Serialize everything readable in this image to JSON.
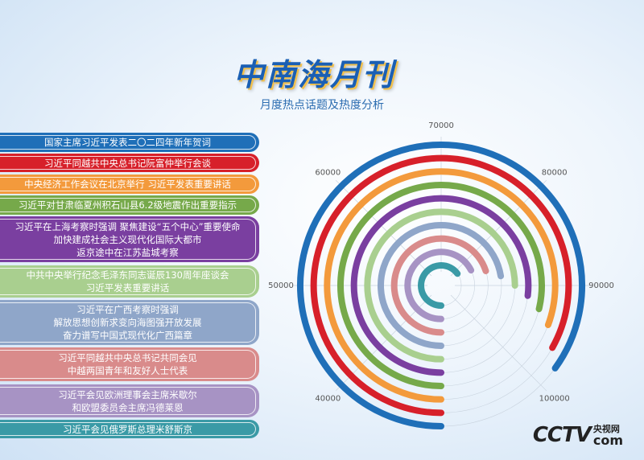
{
  "chart_data": {
    "type": "radial_bar",
    "title": "中南海月刊",
    "subtitle": "月度热点话题及热度分析",
    "categories": [
      "国家主席习近平发表二〇二四年新年贺词",
      "习近平同越共中央总书记阮富仲举行会谈",
      "中央经济工作会议在北京举行 习近平发表重要讲话",
      "习近平对甘肃临夏州积石山县6.2级地震作出重要指示",
      "习近平在上海考察时强调 聚焦建设“五个中心”重要使命\n加快建成社会主义现代化国际大都市\n返京途中在江苏盐城考察",
      "中共中央举行纪念毛泽东同志诞辰130周年座谈会\n习近平发表重要讲话",
      "习近平在广西考察时强调\n解放思想创新求变向海图强开放发展\n奋力谱写中国式现代化广西篇章",
      "习近平同越共中央总书记共同会见\n中越两国青年和友好人士代表",
      "习近平会见欧洲理事会主席米歇尔\n和欧盟委员会主席冯德莱恩",
      "习近平会见俄罗斯总理米舒斯京"
    ],
    "values": [
      98000,
      96500,
      94500,
      93000,
      91500,
      90000,
      88000,
      86000,
      84000,
      82000
    ],
    "colors": [
      "#1f6fb8",
      "#d7202a",
      "#f39a3c",
      "#76a94a",
      "#7a3fa0",
      "#a9cf8f",
      "#8fa6c9",
      "#d98b8b",
      "#a793c4",
      "#3a9aa6"
    ],
    "xlim": [
      30000,
      110000
    ],
    "xticks": [
      40000,
      50000,
      60000,
      70000,
      80000,
      90000,
      100000
    ],
    "grid": true,
    "logo": "CCTV",
    "logo_sub": "央视网",
    "logo_domain": "com"
  }
}
